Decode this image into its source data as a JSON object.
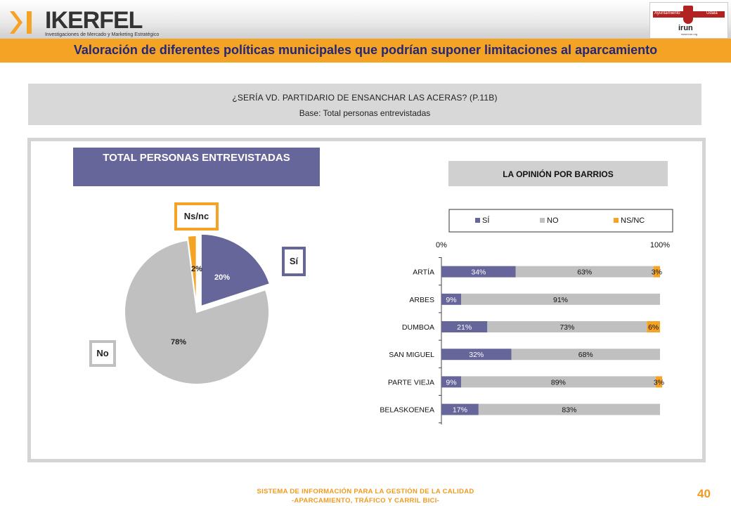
{
  "header": {
    "logo_name": "IKERFEL",
    "logo_tagline": "Investigaciones de Mercado y Marketing Estratégico",
    "council_left": "Ayuntamiento",
    "council_right": "Udala",
    "council_name": "irun",
    "council_url": "www.irun.org"
  },
  "title": "Valoración de diferentes políticas municipales que podrían suponer limitaciones al aparcamiento",
  "question": {
    "text": "¿SERÍA VD. PARTIDARIO DE ENSANCHAR LAS ACERAS? (P.11B)",
    "base": "Base: Total personas entrevistadas"
  },
  "pie_header": "TOTAL PERSONAS ENTREVISTADAS",
  "bars_header": "LA OPINIÓN POR BARRIOS",
  "colors": {
    "si": "#66669a",
    "no": "#c0c0c0",
    "nsnc": "#f5a325"
  },
  "chart_data": [
    {
      "type": "pie",
      "slices": [
        {
          "label": "Sí",
          "value": 20,
          "value_label": "20%"
        },
        {
          "label": "No",
          "value": 78,
          "value_label": "78%"
        },
        {
          "label": "Ns/nc",
          "value": 2,
          "value_label": "2%"
        }
      ]
    },
    {
      "type": "bar",
      "orientation": "horizontal",
      "stacked": true,
      "categories": [
        "ARTÍA",
        "ARBES",
        "DUMBOA",
        "SAN MIGUEL",
        "PARTE VIEJA",
        "BELASKOENEA"
      ],
      "series": [
        {
          "name": "SÍ",
          "values": [
            34,
            9,
            21,
            32,
            9,
            17
          ],
          "labels": [
            "34%",
            "9%",
            "21%",
            "32%",
            "9%",
            "17%"
          ]
        },
        {
          "name": "NO",
          "values": [
            63,
            91,
            73,
            68,
            89,
            83
          ],
          "labels": [
            "63%",
            "91%",
            "73%",
            "68%",
            "89%",
            "83%"
          ]
        },
        {
          "name": "NS/NC",
          "values": [
            3,
            0,
            6,
            0,
            3,
            0
          ],
          "labels": [
            "3%",
            "",
            "6%",
            "",
            "3%",
            ""
          ]
        }
      ],
      "axis_labels": [
        "0%",
        "100%"
      ],
      "xlim": [
        0,
        100
      ],
      "legend_position": "top"
    }
  ],
  "footer": {
    "line1": "SISTEMA DE INFORMACIÓN PARA LA GESTIÓN DE LA CALIDAD",
    "line2": "-APARCAMIENTO, TRÁFICO Y CARRIL BICI-",
    "page": "40"
  }
}
